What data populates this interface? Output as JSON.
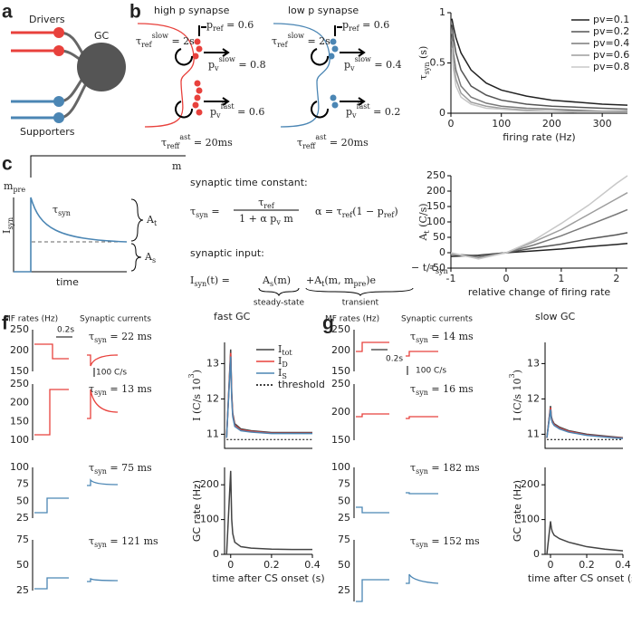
{
  "panels": {
    "a": {
      "label": "a",
      "drivers": "Drivers",
      "gc": "GC",
      "supporters": "Supporters"
    },
    "b": {
      "label": "b",
      "high": "high p synapse",
      "low": "low p synapse",
      "high_labels": [
        [
          {
            "t": "τ",
            "sub": "ref",
            "sup": "slow"
          },
          {
            "t": " = 2s"
          }
        ],
        [
          {
            "t": "p",
            "sub": "ref"
          },
          {
            "t": " = 0.6"
          }
        ],
        [
          {
            "t": "p",
            "sub": "v",
            "sup": "slow"
          },
          {
            "t": " = 0.8"
          }
        ],
        [
          {
            "t": "p",
            "sub": "v",
            "sup": "fast"
          },
          {
            "t": " = 0.6"
          }
        ],
        [
          {
            "t": "τ",
            "sub": "ref",
            "sup": "fast"
          },
          {
            "t": " = 20ms"
          }
        ]
      ],
      "low_labels": [
        [
          {
            "t": "τ",
            "sub": "ref",
            "sup": "slow"
          },
          {
            "t": " = 2s"
          }
        ],
        [
          {
            "t": "p",
            "sub": "ref"
          },
          {
            "t": " = 0.6"
          }
        ],
        [
          {
            "t": "p",
            "sub": "v",
            "sup": "slow"
          },
          {
            "t": " = 0.4"
          }
        ],
        [
          {
            "t": "p",
            "sub": "v",
            "sup": "fast"
          },
          {
            "t": " = 0.2"
          }
        ],
        [
          {
            "t": "τ",
            "sub": "ref",
            "sup": "fast"
          },
          {
            "t": " = 20ms"
          }
        ]
      ]
    },
    "c": {
      "label": "c",
      "m": "m",
      "m_pre": [
        {
          "t": "m",
          "sub": "pre"
        }
      ],
      "i_syn": [
        {
          "t": "I",
          "sub": "syn"
        }
      ],
      "tau": [
        {
          "t": "τ",
          "sub": "syn"
        }
      ],
      "a_t": [
        {
          "t": "A",
          "sub": "t"
        }
      ],
      "a_s": [
        {
          "t": "A",
          "sub": "s"
        }
      ],
      "time": "time",
      "heading1": "synaptic time constant:",
      "eq1_lhs": [
        {
          "t": "τ",
          "sub": "syn"
        },
        {
          "t": " ="
        }
      ],
      "eq1_num": [
        {
          "t": "τ",
          "sub": "ref"
        }
      ],
      "eq1_den": [
        {
          "t": "1 + α p",
          "sub": "v"
        },
        {
          "t": " m"
        }
      ],
      "eq2": [
        {
          "t": "α = τ",
          "sub": "ref"
        },
        {
          "t": "(1 − p",
          "sub": "ref"
        },
        {
          "t": ")"
        }
      ],
      "heading2": "synaptic input:",
      "eq3_lhs": [
        {
          "t": "I",
          "sub": "syn"
        },
        {
          "t": "(t) ="
        }
      ],
      "eq3_s": [
        {
          "t": "A",
          "sub": "s"
        },
        {
          "t": "(m)"
        }
      ],
      "eq3_t": [
        {
          "t": "+A",
          "sub": "t"
        },
        {
          "t": "(m, m",
          "sub": "pre"
        },
        {
          "t": ")e"
        }
      ],
      "eq3_exp": [
        {
          "t": "− t/τ",
          "sub": "syn"
        }
      ],
      "steady": "steady-state",
      "transient": "transient"
    },
    "f": {
      "label": "f",
      "title": "fast GC",
      "mf": "MF rates (Hz)",
      "syn": "Synaptic currents",
      "scale_time": "0.2s",
      "scale_current": "100 C/s",
      "mf_ticks": [
        [
          250,
          200,
          150
        ],
        [
          250,
          200,
          150,
          100
        ],
        [
          100,
          75,
          50,
          25
        ],
        [
          75,
          50,
          25
        ]
      ],
      "tau": [
        [
          {
            "t": "τ",
            "sub": "syn"
          },
          {
            "t": " = 22 ms"
          }
        ],
        [
          {
            "t": "τ",
            "sub": "syn"
          },
          {
            "t": " = 13 ms"
          }
        ],
        [
          {
            "t": "τ",
            "sub": "syn"
          },
          {
            "t": " = 75 ms"
          }
        ],
        [
          {
            "t": "τ",
            "sub": "syn"
          },
          {
            "t": " = 121 ms"
          }
        ]
      ]
    },
    "g": {
      "label": "g",
      "title": "slow GC",
      "mf": "MF rates (Hz)",
      "syn": "Synaptic currents",
      "scale_time": "0.2s",
      "scale_current": "100 C/s",
      "mf_ticks": [
        [
          250,
          200,
          150
        ],
        [
          250,
          200,
          150
        ],
        [
          100,
          75,
          50,
          25
        ],
        [
          75,
          50,
          25
        ]
      ],
      "tau": [
        [
          {
            "t": "τ",
            "sub": "syn"
          },
          {
            "t": " = 14 ms"
          }
        ],
        [
          {
            "t": "τ",
            "sub": "syn"
          },
          {
            "t": " = 16 ms"
          }
        ],
        [
          {
            "t": "τ",
            "sub": "syn"
          },
          {
            "t": " = 182 ms"
          }
        ],
        [
          {
            "t": "τ",
            "sub": "syn"
          },
          {
            "t": " = 152 ms"
          }
        ]
      ]
    }
  },
  "chart_data": [
    {
      "type": "line",
      "x": [
        2,
        5,
        10,
        20,
        40,
        70,
        100,
        150,
        200,
        250,
        300,
        350
      ],
      "series": [
        {
          "name": "pv=0.1",
          "color": "#222222",
          "values": [
            0.94,
            0.86,
            0.75,
            0.6,
            0.43,
            0.3,
            0.23,
            0.17,
            0.13,
            0.11,
            0.09,
            0.08
          ]
        },
        {
          "name": "pv=0.2",
          "color": "#555555",
          "values": [
            0.88,
            0.75,
            0.6,
            0.43,
            0.27,
            0.18,
            0.13,
            0.09,
            0.07,
            0.06,
            0.05,
            0.04
          ]
        },
        {
          "name": "pv=0.4",
          "color": "#7a7a7a",
          "values": [
            0.79,
            0.6,
            0.43,
            0.27,
            0.16,
            0.1,
            0.07,
            0.05,
            0.04,
            0.03,
            0.02,
            0.02
          ]
        },
        {
          "name": "pv=0.6",
          "color": "#9d9d9d",
          "values": [
            0.72,
            0.5,
            0.34,
            0.2,
            0.11,
            0.07,
            0.05,
            0.03,
            0.02,
            0.02,
            0.02,
            0.01
          ]
        },
        {
          "name": "pv=0.8",
          "color": "#c8c8c8",
          "values": [
            0.65,
            0.43,
            0.27,
            0.16,
            0.09,
            0.05,
            0.04,
            0.02,
            0.02,
            0.01,
            0.01,
            0.01
          ]
        }
      ],
      "xlim": [
        0,
        350
      ],
      "ylim": [
        0,
        1
      ],
      "xticks": [
        0,
        100,
        200,
        300
      ],
      "yticks": [
        0,
        0.5,
        1
      ],
      "xlabel": "firing rate (Hz)",
      "ylabel": [
        {
          "t": "τ",
          "sub": "syn"
        },
        {
          "t": " (s)"
        }
      ],
      "legend": "upper right"
    },
    {
      "type": "line",
      "x": [
        -1,
        -0.5,
        0,
        0.5,
        1,
        1.5,
        2,
        2.2
      ],
      "series": [
        {
          "color": "#222222",
          "values": [
            -12,
            -8,
            0,
            6,
            12,
            20,
            27,
            30
          ]
        },
        {
          "color": "#555555",
          "values": [
            -5,
            -10,
            0,
            15,
            28,
            45,
            58,
            65
          ]
        },
        {
          "color": "#7a7a7a",
          "values": [
            -5,
            -15,
            0,
            25,
            55,
            90,
            125,
            140
          ]
        },
        {
          "color": "#9d9d9d",
          "values": [
            -3,
            -18,
            0,
            35,
            75,
            125,
            175,
            195
          ]
        },
        {
          "color": "#c8c8c8",
          "values": [
            0,
            -20,
            0,
            40,
            95,
            155,
            225,
            250
          ]
        }
      ],
      "xlim": [
        -1,
        2.2
      ],
      "ylim": [
        -50,
        250
      ],
      "xticks": [
        -1,
        0,
        1,
        2
      ],
      "yticks": [
        -50,
        0,
        50,
        100,
        150,
        200,
        250
      ],
      "xlabel": "relative change of firing rate",
      "ylabel": [
        {
          "t": "A",
          "sub": "t"
        },
        {
          "t": " (C/s)"
        }
      ]
    },
    {
      "type": "line",
      "x": [
        -0.02,
        0,
        0.005,
        0.01,
        0.02,
        0.05,
        0.1,
        0.2,
        0.3,
        0.4
      ],
      "series": [
        {
          "name": [
            {
              "t": "I",
              "sub": "tot"
            }
          ],
          "color": "#444444",
          "values": [
            10.9,
            13.4,
            12.2,
            11.6,
            11.3,
            11.15,
            11.1,
            11.05,
            11.05,
            11.05
          ]
        },
        {
          "name": [
            {
              "t": "I",
              "sub": "D"
            }
          ],
          "color": "#e8413c",
          "values": [
            10.9,
            13.3,
            12.1,
            11.55,
            11.25,
            11.12,
            11.08,
            11.03,
            11.03,
            11.03
          ]
        },
        {
          "name": [
            {
              "t": "I",
              "sub": "S"
            }
          ],
          "color": "#4b86b4",
          "values": [
            10.9,
            13.2,
            12.0,
            11.5,
            11.22,
            11.1,
            11.06,
            11.02,
            11.02,
            11.02
          ]
        },
        {
          "name": "threshold",
          "color": "#000000",
          "dashed": true,
          "values": [
            10.85,
            10.85,
            10.85,
            10.85,
            10.85,
            10.85,
            10.85,
            10.85,
            10.85,
            10.85
          ]
        }
      ],
      "xlim": [
        -0.03,
        0.4
      ],
      "ylim": [
        10.6,
        13.6
      ],
      "xticks": [],
      "yticks": [
        11,
        12,
        13
      ],
      "ylabel": [
        {
          "t": "I"
        },
        {
          "t": " (C/s 10",
          "sup": "3"
        },
        {
          "t": ")"
        }
      ],
      "legend": "upper right"
    },
    {
      "type": "line",
      "x": [
        -0.02,
        0,
        0.005,
        0.01,
        0.02,
        0.05,
        0.1,
        0.2,
        0.3,
        0.4
      ],
      "series": [
        {
          "color": "#444444",
          "values": [
            0,
            240,
            100,
            60,
            35,
            22,
            18,
            15,
            14,
            14
          ]
        }
      ],
      "xlim": [
        -0.03,
        0.4
      ],
      "ylim": [
        0,
        250
      ],
      "xticks": [
        0,
        0.2,
        0.4
      ],
      "yticks": [
        0,
        100,
        200
      ],
      "xlabel": "time after CS onset (s)",
      "ylabel": "GC rate (Hz)"
    },
    {
      "type": "line",
      "x": [
        -0.02,
        0,
        0.005,
        0.01,
        0.02,
        0.05,
        0.1,
        0.2,
        0.3,
        0.4
      ],
      "series": [
        {
          "color": "#444444",
          "values": [
            10.9,
            11.8,
            11.5,
            11.4,
            11.3,
            11.2,
            11.1,
            11.0,
            10.95,
            10.9
          ]
        },
        {
          "color": "#e8413c",
          "values": [
            10.9,
            11.75,
            11.45,
            11.36,
            11.27,
            11.17,
            11.08,
            10.98,
            10.93,
            10.89
          ]
        },
        {
          "color": "#4b86b4",
          "values": [
            10.9,
            11.7,
            11.42,
            11.33,
            11.25,
            11.15,
            11.06,
            10.97,
            10.92,
            10.88
          ]
        },
        {
          "color": "#000000",
          "dashed": true,
          "values": [
            10.85,
            10.85,
            10.85,
            10.85,
            10.85,
            10.85,
            10.85,
            10.85,
            10.85,
            10.85
          ]
        }
      ],
      "xlim": [
        -0.03,
        0.4
      ],
      "ylim": [
        10.6,
        13.6
      ],
      "xticks": [],
      "yticks": [
        11,
        12,
        13
      ],
      "ylabel": [
        {
          "t": "I"
        },
        {
          "t": " (C/s 10",
          "sup": "3"
        },
        {
          "t": ")"
        }
      ]
    },
    {
      "type": "line",
      "x": [
        -0.02,
        0,
        0.005,
        0.01,
        0.02,
        0.05,
        0.1,
        0.2,
        0.3,
        0.4
      ],
      "series": [
        {
          "color": "#444444",
          "values": [
            0,
            95,
            75,
            65,
            55,
            45,
            35,
            22,
            15,
            10
          ]
        }
      ],
      "xlim": [
        -0.03,
        0.4
      ],
      "ylim": [
        0,
        250
      ],
      "xticks": [
        0,
        0.2,
        0.4
      ],
      "yticks": [
        0,
        100,
        200
      ],
      "xlabel": "time after CS onset (s)",
      "ylabel": "GC rate (Hz)"
    }
  ]
}
